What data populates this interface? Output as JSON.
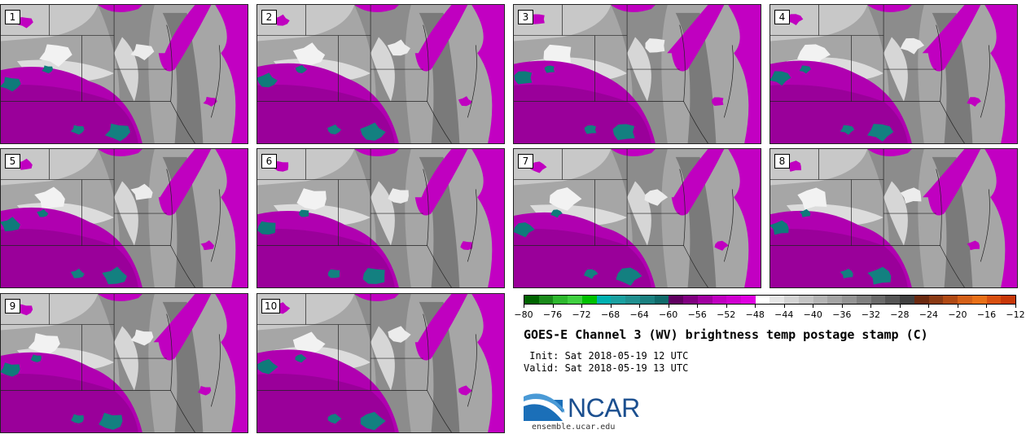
{
  "panels": [
    {
      "label": "1"
    },
    {
      "label": "2"
    },
    {
      "label": "3"
    },
    {
      "label": "4"
    },
    {
      "label": "5"
    },
    {
      "label": "6"
    },
    {
      "label": "7"
    },
    {
      "label": "8"
    },
    {
      "label": "9"
    },
    {
      "label": "10"
    }
  ],
  "colorbar": {
    "colors": [
      "#006400",
      "#1a8a1a",
      "#2eb82e",
      "#40d040",
      "#00c000",
      "#00b0b0",
      "#1aa0a0",
      "#209090",
      "#1a8080",
      "#106a6a",
      "#600060",
      "#800080",
      "#a000a0",
      "#c000c0",
      "#d000d0",
      "#e000e0",
      "#ffffff",
      "#e6e6e6",
      "#d4d4d4",
      "#c4c4c4",
      "#b4b4b4",
      "#a4a4a4",
      "#949494",
      "#808080",
      "#6a6a6a",
      "#555555",
      "#404040",
      "#6b2a10",
      "#8a3a14",
      "#b04a14",
      "#d46018",
      "#e87018",
      "#d85010",
      "#c83808"
    ],
    "tick_labels": [
      "−80",
      "−76",
      "−72",
      "−68",
      "−64",
      "−60",
      "−56",
      "−52",
      "−48",
      "−44",
      "−40",
      "−36",
      "−32",
      "−28",
      "−24",
      "−20",
      "−16",
      "−12"
    ],
    "min": -80,
    "max": -12
  },
  "title": "GOES-E Channel 3 (WV) brightness temp postage stamp (C)",
  "init_line": " Init: Sat 2018-05-19 12 UTC",
  "valid_line": "Valid: Sat 2018-05-19 13 UTC",
  "logo": {
    "name": "NCAR",
    "site": "ensemble.ucar.edu"
  }
}
